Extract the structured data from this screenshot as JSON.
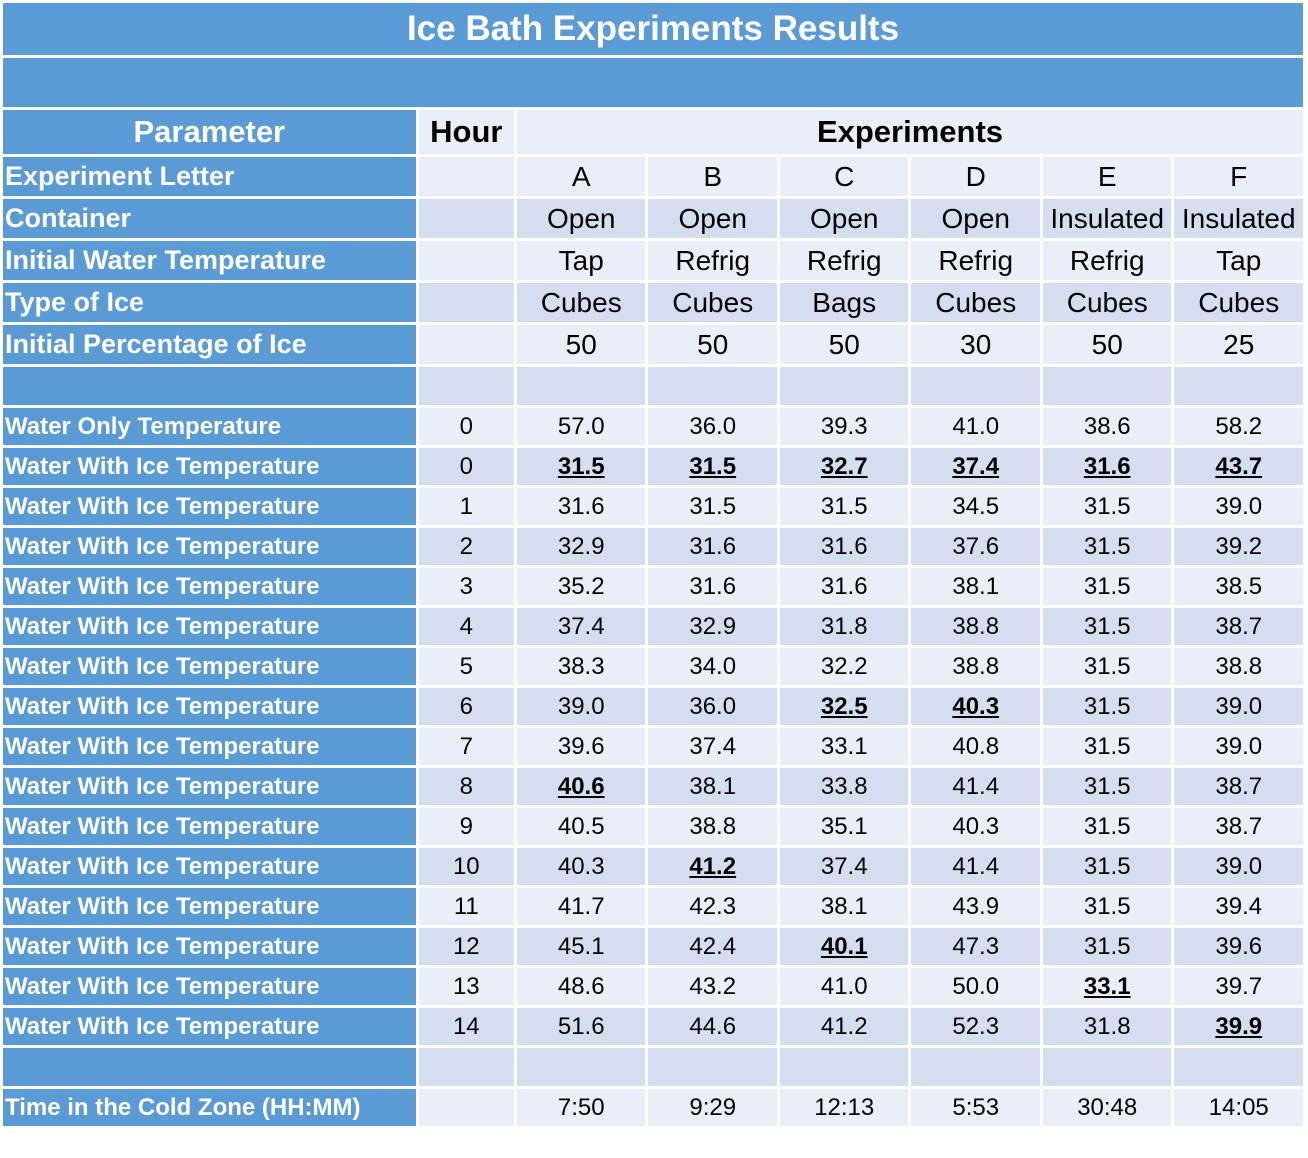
{
  "title": "Ice Bath Experiments Results",
  "headers": {
    "parameter": "Parameter",
    "hour": "Hour",
    "experiments": "Experiments"
  },
  "param_rows": [
    {
      "label": "Experiment Letter",
      "values": [
        "A",
        "B",
        "C",
        "D",
        "E",
        "F"
      ]
    },
    {
      "label": "Container",
      "values": [
        "Open",
        "Open",
        "Open",
        "Open",
        "Insulated",
        "Insulated"
      ]
    },
    {
      "label": "Initial Water Temperature",
      "values": [
        "Tap",
        "Refrig",
        "Refrig",
        "Refrig",
        "Refrig",
        "Tap"
      ]
    },
    {
      "label": "Type of Ice",
      "values": [
        "Cubes",
        "Cubes",
        "Bags",
        "Cubes",
        "Cubes",
        "Cubes"
      ]
    },
    {
      "label": "Initial Percentage of Ice",
      "values": [
        "50",
        "50",
        "50",
        "30",
        "50",
        "25"
      ]
    }
  ],
  "data_rows": [
    {
      "label": "Water Only Temperature",
      "hour": "0",
      "values": [
        "57.0",
        "36.0",
        "39.3",
        "41.0",
        "38.6",
        "58.2"
      ]
    },
    {
      "label": "Water With Ice Temperature",
      "hour": "0",
      "values": [
        "31.5",
        "31.5",
        "32.7",
        "37.4",
        "31.6",
        "43.7"
      ]
    },
    {
      "label": "Water With Ice Temperature",
      "hour": "1",
      "values": [
        "31.6",
        "31.5",
        "31.5",
        "34.5",
        "31.5",
        "39.0"
      ]
    },
    {
      "label": "Water With Ice Temperature",
      "hour": "2",
      "values": [
        "32.9",
        "31.6",
        "31.6",
        "37.6",
        "31.5",
        "39.2"
      ]
    },
    {
      "label": "Water With Ice Temperature",
      "hour": "3",
      "values": [
        "35.2",
        "31.6",
        "31.6",
        "38.1",
        "31.5",
        "38.5"
      ]
    },
    {
      "label": "Water With Ice Temperature",
      "hour": "4",
      "values": [
        "37.4",
        "32.9",
        "31.8",
        "38.8",
        "31.5",
        "38.7"
      ]
    },
    {
      "label": "Water With Ice Temperature",
      "hour": "5",
      "values": [
        "38.3",
        "34.0",
        "32.2",
        "38.8",
        "31.5",
        "38.8"
      ]
    },
    {
      "label": "Water With Ice Temperature",
      "hour": "6",
      "values": [
        "39.0",
        "36.0",
        "32.5",
        "40.3",
        "31.5",
        "39.0"
      ]
    },
    {
      "label": "Water With Ice Temperature",
      "hour": "7",
      "values": [
        "39.6",
        "37.4",
        "33.1",
        "40.8",
        "31.5",
        "39.0"
      ]
    },
    {
      "label": "Water With Ice Temperature",
      "hour": "8",
      "values": [
        "40.6",
        "38.1",
        "33.8",
        "41.4",
        "31.5",
        "38.7"
      ]
    },
    {
      "label": "Water With Ice Temperature",
      "hour": "9",
      "values": [
        "40.5",
        "38.8",
        "35.1",
        "40.3",
        "31.5",
        "38.7"
      ]
    },
    {
      "label": "Water With Ice Temperature",
      "hour": "10",
      "values": [
        "40.3",
        "41.2",
        "37.4",
        "41.4",
        "31.5",
        "39.0"
      ]
    },
    {
      "label": "Water With Ice Temperature",
      "hour": "11",
      "values": [
        "41.7",
        "42.3",
        "38.1",
        "43.9",
        "31.5",
        "39.4"
      ]
    },
    {
      "label": "Water With Ice Temperature",
      "hour": "12",
      "values": [
        "45.1",
        "42.4",
        "40.1",
        "47.3",
        "31.5",
        "39.6"
      ]
    },
    {
      "label": "Water With Ice Temperature",
      "hour": "13",
      "values": [
        "48.6",
        "43.2",
        "41.0",
        "50.0",
        "33.1",
        "39.7"
      ]
    },
    {
      "label": "Water With Ice Temperature",
      "hour": "14",
      "values": [
        "51.6",
        "44.6",
        "41.2",
        "52.3",
        "31.8",
        "39.9"
      ]
    }
  ],
  "highlights": [
    [
      1,
      0
    ],
    [
      1,
      1
    ],
    [
      1,
      2
    ],
    [
      1,
      3
    ],
    [
      1,
      4
    ],
    [
      1,
      5
    ],
    [
      7,
      2
    ],
    [
      7,
      3
    ],
    [
      9,
      0
    ],
    [
      11,
      1
    ],
    [
      13,
      2
    ],
    [
      14,
      4
    ],
    [
      15,
      5
    ]
  ],
  "summary_row": {
    "label": "Time in the Cold Zone (HH:MM)",
    "hour": "",
    "values": [
      "7:50",
      "9:29",
      "12:13",
      "5:53",
      "30:48",
      "14:05"
    ]
  },
  "colors": {
    "header_blue": "#5b9bd5",
    "cell_light": "#d5deef",
    "cell_lighter": "#e9eef7"
  }
}
